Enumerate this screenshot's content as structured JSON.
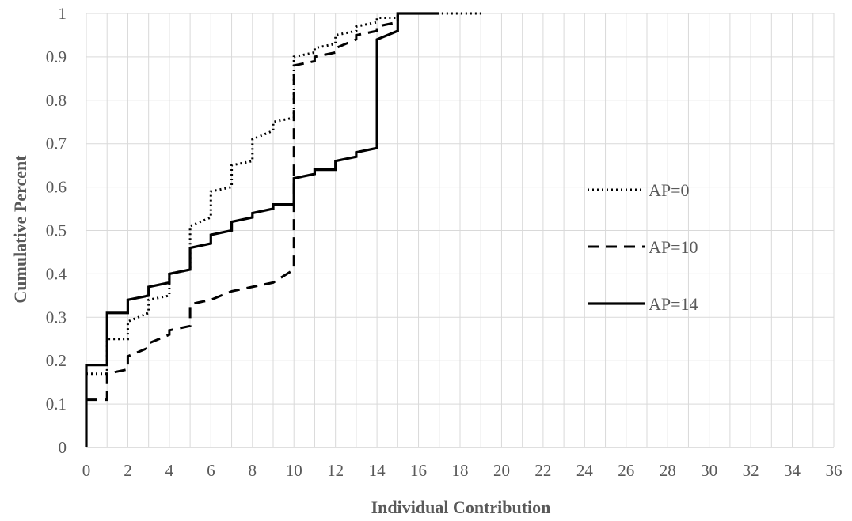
{
  "chart_data": {
    "type": "line",
    "title": "",
    "xlabel": "Individual Contribution",
    "ylabel": "Cumulative Percent",
    "xlim": [
      0,
      36
    ],
    "ylim": [
      0,
      1
    ],
    "x_ticks": [
      0,
      2,
      4,
      6,
      8,
      10,
      12,
      14,
      16,
      18,
      20,
      22,
      24,
      26,
      28,
      30,
      32,
      34,
      36
    ],
    "y_ticks": [
      0,
      0.1,
      0.2,
      0.3,
      0.4,
      0.5,
      0.6,
      0.7,
      0.8,
      0.9,
      1
    ],
    "grid": true,
    "legend_position": "right",
    "series": [
      {
        "name": "AP=0",
        "style": "dotted",
        "color": "#000000",
        "points": [
          [
            0,
            0.17
          ],
          [
            1,
            0.17
          ],
          [
            1,
            0.25
          ],
          [
            2,
            0.25
          ],
          [
            2,
            0.29
          ],
          [
            3,
            0.31
          ],
          [
            3,
            0.34
          ],
          [
            4,
            0.35
          ],
          [
            4,
            0.4
          ],
          [
            5,
            0.41
          ],
          [
            5,
            0.51
          ],
          [
            6,
            0.53
          ],
          [
            6,
            0.59
          ],
          [
            7,
            0.6
          ],
          [
            7,
            0.65
          ],
          [
            8,
            0.66
          ],
          [
            8,
            0.71
          ],
          [
            9,
            0.73
          ],
          [
            9,
            0.75
          ],
          [
            10,
            0.76
          ],
          [
            10,
            0.9
          ],
          [
            11,
            0.91
          ],
          [
            11,
            0.92
          ],
          [
            12,
            0.93
          ],
          [
            12,
            0.95
          ],
          [
            13,
            0.96
          ],
          [
            13,
            0.97
          ],
          [
            14,
            0.98
          ],
          [
            14,
            0.99
          ],
          [
            15,
            0.99
          ],
          [
            15,
            1
          ],
          [
            19,
            1
          ]
        ]
      },
      {
        "name": "AP=10",
        "style": "dashed",
        "color": "#000000",
        "points": [
          [
            0,
            0.11
          ],
          [
            1,
            0.11
          ],
          [
            1,
            0.17
          ],
          [
            2,
            0.18
          ],
          [
            2,
            0.21
          ],
          [
            3,
            0.23
          ],
          [
            3,
            0.24
          ],
          [
            4,
            0.26
          ],
          [
            4,
            0.27
          ],
          [
            5,
            0.28
          ],
          [
            5,
            0.33
          ],
          [
            6,
            0.34
          ],
          [
            7,
            0.36
          ],
          [
            8,
            0.37
          ],
          [
            9,
            0.38
          ],
          [
            10,
            0.41
          ],
          [
            10,
            0.88
          ],
          [
            11,
            0.89
          ],
          [
            11,
            0.9
          ],
          [
            12,
            0.91
          ],
          [
            12,
            0.92
          ],
          [
            13,
            0.94
          ],
          [
            13,
            0.95
          ],
          [
            14,
            0.96
          ],
          [
            14,
            0.97
          ],
          [
            15,
            0.98
          ],
          [
            15,
            1
          ],
          [
            17,
            1
          ]
        ]
      },
      {
        "name": "AP=14",
        "style": "solid",
        "color": "#000000",
        "points": [
          [
            0,
            0
          ],
          [
            0,
            0.19
          ],
          [
            1,
            0.19
          ],
          [
            1,
            0.31
          ],
          [
            2,
            0.31
          ],
          [
            2,
            0.34
          ],
          [
            3,
            0.35
          ],
          [
            3,
            0.37
          ],
          [
            4,
            0.38
          ],
          [
            4,
            0.4
          ],
          [
            5,
            0.41
          ],
          [
            5,
            0.46
          ],
          [
            6,
            0.47
          ],
          [
            6,
            0.49
          ],
          [
            7,
            0.5
          ],
          [
            7,
            0.52
          ],
          [
            8,
            0.53
          ],
          [
            8,
            0.54
          ],
          [
            9,
            0.55
          ],
          [
            9,
            0.56
          ],
          [
            10,
            0.56
          ],
          [
            10,
            0.62
          ],
          [
            11,
            0.63
          ],
          [
            11,
            0.64
          ],
          [
            12,
            0.64
          ],
          [
            12,
            0.66
          ],
          [
            13,
            0.67
          ],
          [
            13,
            0.68
          ],
          [
            14,
            0.69
          ],
          [
            14,
            0.94
          ],
          [
            15,
            0.96
          ],
          [
            15,
            1
          ],
          [
            17,
            1
          ]
        ]
      }
    ]
  }
}
